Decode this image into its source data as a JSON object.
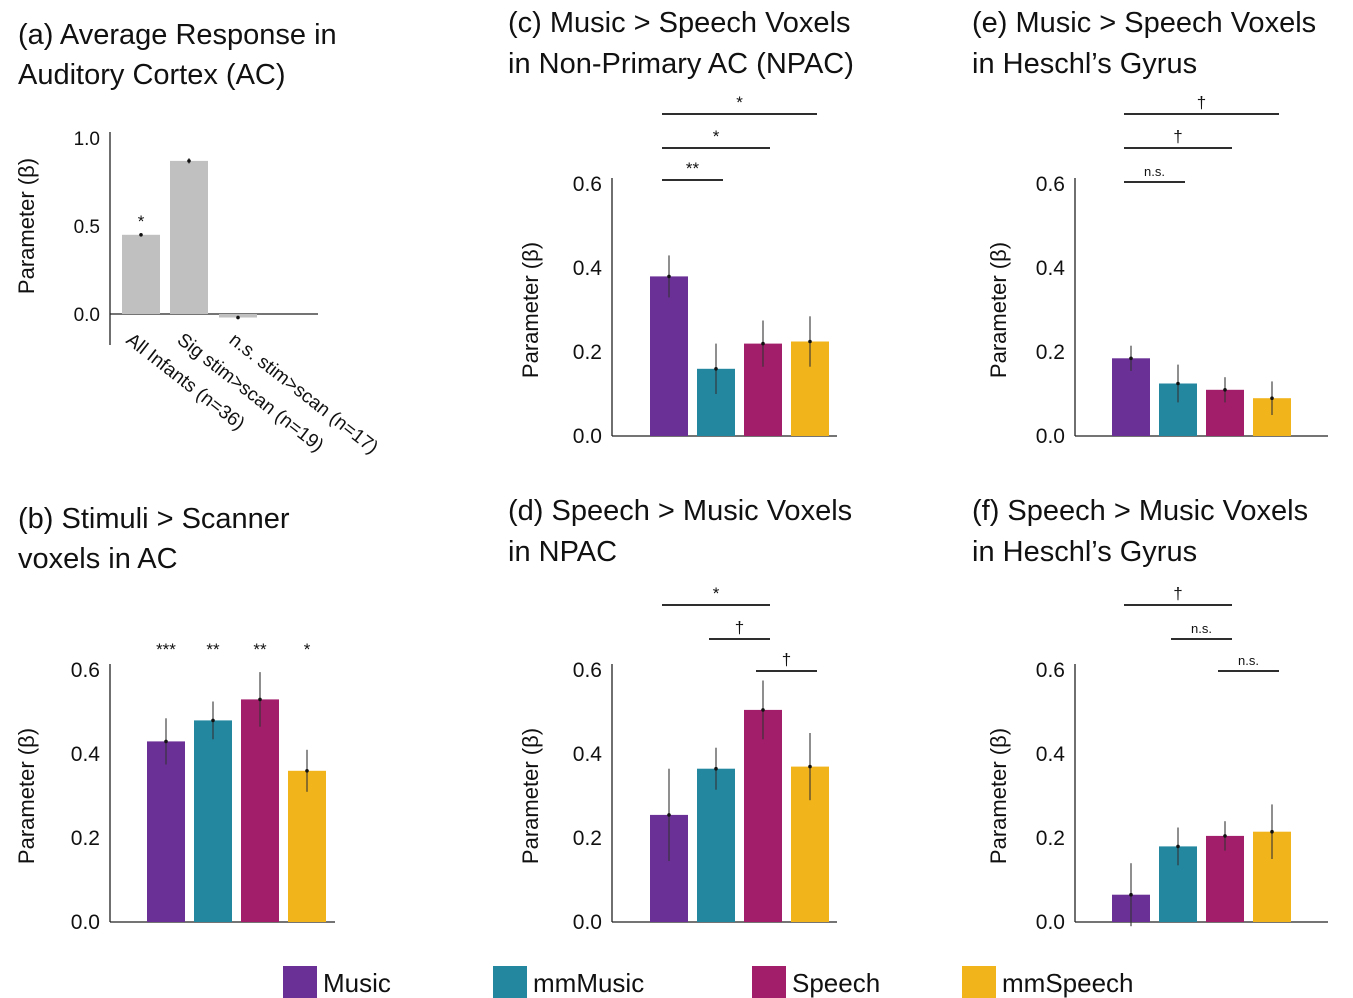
{
  "colors": {
    "Music": "#6a3096",
    "mmMusic": "#22879f",
    "Speech": "#a31e6a",
    "mmSpeech": "#f2b41b",
    "avg": "#c0c0c0"
  },
  "legend": {
    "items": [
      "Music",
      "mmMusic",
      "Speech",
      "mmSpeech"
    ]
  },
  "chart_data": [
    {
      "id": "a",
      "type": "bar",
      "title_lines": [
        "(a) Average Response in",
        "Auditory Cortex (AC)"
      ],
      "ylabel": "Parameter (β)",
      "ylim": [
        0,
        1.0
      ],
      "yticks": [
        "0.0",
        "0.5",
        "1.0"
      ],
      "categories": [
        "All Infants (n=36)",
        "Sig stim>scan (n=19)",
        "n.s. stim>scan (n=17)"
      ],
      "values": [
        0.45,
        0.87,
        -0.02
      ],
      "errors": [
        0.005,
        0.015,
        0.01
      ],
      "annotations": [
        "*",
        "",
        ""
      ]
    },
    {
      "id": "b",
      "type": "bar",
      "title_lines": [
        "(b) Stimuli > Scanner",
        "voxels in AC"
      ],
      "ylabel": "Parameter (β)",
      "ylim": [
        0,
        0.6
      ],
      "yticks": [
        "0.0",
        "0.2",
        "0.4",
        "0.6"
      ],
      "categories": [
        "Music",
        "mmMusic",
        "Speech",
        "mmSpeech"
      ],
      "values": [
        0.43,
        0.48,
        0.53,
        0.36
      ],
      "errors": [
        0.055,
        0.045,
        0.065,
        0.05
      ],
      "annotations": [
        "***",
        "**",
        "**",
        "*"
      ],
      "brackets": []
    },
    {
      "id": "c",
      "type": "bar",
      "title_lines": [
        "(c) Music > Speech Voxels",
        "in Non-Primary AC (NPAC)"
      ],
      "ylabel": "Parameter (β)",
      "ylim": [
        0,
        0.6
      ],
      "yticks": [
        "0.0",
        "0.2",
        "0.4",
        "0.6"
      ],
      "categories": [
        "Music",
        "mmMusic",
        "Speech",
        "mmSpeech"
      ],
      "values": [
        0.38,
        0.16,
        0.22,
        0.225
      ],
      "errors": [
        0.05,
        0.06,
        0.055,
        0.06
      ],
      "annotations": [],
      "brackets": [
        {
          "from": 0,
          "to": 1,
          "label": "**"
        },
        {
          "from": 0,
          "to": 2,
          "label": "*"
        },
        {
          "from": 0,
          "to": 3,
          "label": "*"
        }
      ]
    },
    {
      "id": "d",
      "type": "bar",
      "title_lines": [
        "(d) Speech > Music Voxels",
        "in NPAC"
      ],
      "ylabel": "Parameter (β)",
      "ylim": [
        0,
        0.6
      ],
      "yticks": [
        "0.0",
        "0.2",
        "0.4",
        "0.6"
      ],
      "categories": [
        "Music",
        "mmMusic",
        "Speech",
        "mmSpeech"
      ],
      "values": [
        0.255,
        0.365,
        0.505,
        0.37
      ],
      "errors": [
        0.11,
        0.05,
        0.07,
        0.08
      ],
      "annotations": [],
      "brackets": [
        {
          "from": 2,
          "to": 3,
          "label": "†"
        },
        {
          "from": 1,
          "to": 2,
          "label": "†"
        },
        {
          "from": 0,
          "to": 2,
          "label": "*"
        }
      ]
    },
    {
      "id": "e",
      "type": "bar",
      "title_lines": [
        "(e) Music > Speech Voxels",
        "in Heschl’s Gyrus"
      ],
      "ylabel": "Parameter (β)",
      "ylim": [
        0,
        0.6
      ],
      "yticks": [
        "0.0",
        "0.2",
        "0.4",
        "0.6"
      ],
      "categories": [
        "Music",
        "mmMusic",
        "Speech",
        "mmSpeech"
      ],
      "values": [
        0.185,
        0.125,
        0.11,
        0.09
      ],
      "errors": [
        0.03,
        0.045,
        0.03,
        0.04
      ],
      "annotations": [],
      "brackets": [
        {
          "from": 0,
          "to": 1,
          "label": "n.s."
        },
        {
          "from": 0,
          "to": 2,
          "label": "†"
        },
        {
          "from": 0,
          "to": 3,
          "label": "†"
        }
      ]
    },
    {
      "id": "f",
      "type": "bar",
      "title_lines": [
        "(f) Speech > Music Voxels",
        "in Heschl’s Gyrus"
      ],
      "ylabel": "Parameter (β)",
      "ylim": [
        0,
        0.6
      ],
      "yticks": [
        "0.0",
        "0.2",
        "0.4",
        "0.6"
      ],
      "categories": [
        "Music",
        "mmMusic",
        "Speech",
        "mmSpeech"
      ],
      "values": [
        0.065,
        0.18,
        0.205,
        0.215
      ],
      "errors": [
        0.075,
        0.045,
        0.035,
        0.065
      ],
      "annotations": [],
      "brackets": [
        {
          "from": 2,
          "to": 3,
          "label": "n.s."
        },
        {
          "from": 1,
          "to": 2,
          "label": "n.s."
        },
        {
          "from": 0,
          "to": 2,
          "label": "†"
        }
      ]
    }
  ]
}
